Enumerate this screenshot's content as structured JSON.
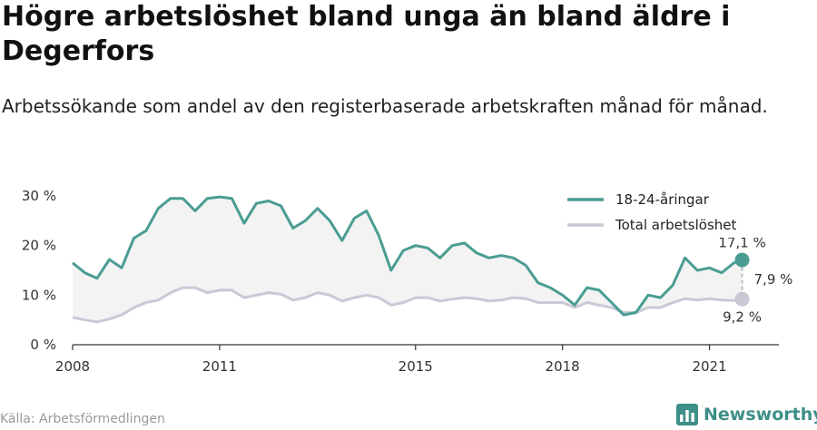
{
  "header": {
    "title": "Högre arbetslöshet bland unga än bland äldre i Degerfors",
    "subtitle": "Arbetssökande som andel av den registerbaserade arbetskraften månad för månad."
  },
  "footer": {
    "source": "Källa: Arbetsförmedlingen",
    "brand": "Newsworthy",
    "brand_icon": "bar-chart-logo-icon"
  },
  "colors": {
    "youth": "#4a9d93",
    "total": "#c9c9d6",
    "band": "#f3f3f3",
    "axis": "#333333"
  },
  "chart_data": {
    "type": "line",
    "ylim": [
      0,
      30
    ],
    "xlim": [
      "2008-01",
      "2022-06"
    ],
    "yticks": [
      {
        "value": 0,
        "label": "0 %"
      },
      {
        "value": 10,
        "label": "10 %"
      },
      {
        "value": 20,
        "label": "20 %"
      },
      {
        "value": 30,
        "label": "30 %"
      }
    ],
    "xticks": [
      {
        "value": "2008-01",
        "label": "2008"
      },
      {
        "value": "2011-01",
        "label": "2011"
      },
      {
        "value": "2015-01",
        "label": "2015"
      },
      {
        "value": "2018-01",
        "label": "2018"
      },
      {
        "value": "2021-01",
        "label": "2021"
      }
    ],
    "legend": {
      "placement": "top-right"
    },
    "series": [
      {
        "name": "18-24-åringar",
        "color": "#4a9d93",
        "points": [
          [
            "2008-01",
            16.5
          ],
          [
            "2008-04",
            14.5
          ],
          [
            "2008-07",
            13.4
          ],
          [
            "2008-10",
            17.2
          ],
          [
            "2009-01",
            15.5
          ],
          [
            "2009-04",
            21.5
          ],
          [
            "2009-07",
            23.0
          ],
          [
            "2009-10",
            27.5
          ],
          [
            "2010-01",
            29.5
          ],
          [
            "2010-04",
            29.5
          ],
          [
            "2010-07",
            27.0
          ],
          [
            "2010-10",
            29.5
          ],
          [
            "2011-01",
            29.8
          ],
          [
            "2011-04",
            29.5
          ],
          [
            "2011-07",
            24.5
          ],
          [
            "2011-10",
            28.5
          ],
          [
            "2012-01",
            29.0
          ],
          [
            "2012-04",
            28.0
          ],
          [
            "2012-07",
            23.5
          ],
          [
            "2012-10",
            25.0
          ],
          [
            "2013-01",
            27.5
          ],
          [
            "2013-04",
            25.0
          ],
          [
            "2013-07",
            21.0
          ],
          [
            "2013-10",
            25.5
          ],
          [
            "2014-01",
            27.0
          ],
          [
            "2014-04",
            22.0
          ],
          [
            "2014-07",
            15.0
          ],
          [
            "2014-10",
            19.0
          ],
          [
            "2015-01",
            20.0
          ],
          [
            "2015-04",
            19.5
          ],
          [
            "2015-07",
            17.5
          ],
          [
            "2015-10",
            20.0
          ],
          [
            "2016-01",
            20.5
          ],
          [
            "2016-04",
            18.5
          ],
          [
            "2016-07",
            17.5
          ],
          [
            "2016-10",
            18.0
          ],
          [
            "2017-01",
            17.5
          ],
          [
            "2017-04",
            16.0
          ],
          [
            "2017-07",
            12.5
          ],
          [
            "2017-10",
            11.5
          ],
          [
            "2018-01",
            10.0
          ],
          [
            "2018-04",
            8.0
          ],
          [
            "2018-07",
            11.5
          ],
          [
            "2018-10",
            11.0
          ],
          [
            "2019-01",
            8.5
          ],
          [
            "2019-04",
            6.0
          ],
          [
            "2019-07",
            6.5
          ],
          [
            "2019-10",
            10.0
          ],
          [
            "2020-01",
            9.5
          ],
          [
            "2020-04",
            12.0
          ],
          [
            "2020-07",
            17.5
          ],
          [
            "2020-10",
            15.0
          ],
          [
            "2021-01",
            15.5
          ],
          [
            "2021-04",
            14.5
          ],
          [
            "2021-07",
            16.5
          ],
          [
            "2021-09",
            17.1
          ]
        ],
        "end_label": "17,1 %"
      },
      {
        "name": "Total arbetslöshet",
        "color": "#c9c9d6",
        "points": [
          [
            "2008-01",
            5.5
          ],
          [
            "2008-04",
            5.0
          ],
          [
            "2008-07",
            4.6
          ],
          [
            "2008-10",
            5.2
          ],
          [
            "2009-01",
            6.0
          ],
          [
            "2009-04",
            7.5
          ],
          [
            "2009-07",
            8.5
          ],
          [
            "2009-10",
            9.0
          ],
          [
            "2010-01",
            10.5
          ],
          [
            "2010-04",
            11.5
          ],
          [
            "2010-07",
            11.5
          ],
          [
            "2010-10",
            10.5
          ],
          [
            "2011-01",
            11.0
          ],
          [
            "2011-04",
            11.0
          ],
          [
            "2011-07",
            9.5
          ],
          [
            "2011-10",
            10.0
          ],
          [
            "2012-01",
            10.5
          ],
          [
            "2012-04",
            10.2
          ],
          [
            "2012-07",
            9.0
          ],
          [
            "2012-10",
            9.5
          ],
          [
            "2013-01",
            10.5
          ],
          [
            "2013-04",
            10.0
          ],
          [
            "2013-07",
            8.8
          ],
          [
            "2013-10",
            9.5
          ],
          [
            "2014-01",
            10.0
          ],
          [
            "2014-04",
            9.5
          ],
          [
            "2014-07",
            8.0
          ],
          [
            "2014-10",
            8.5
          ],
          [
            "2015-01",
            9.5
          ],
          [
            "2015-04",
            9.5
          ],
          [
            "2015-07",
            8.8
          ],
          [
            "2015-10",
            9.2
          ],
          [
            "2016-01",
            9.5
          ],
          [
            "2016-04",
            9.3
          ],
          [
            "2016-07",
            8.8
          ],
          [
            "2016-10",
            9.0
          ],
          [
            "2017-01",
            9.5
          ],
          [
            "2017-04",
            9.3
          ],
          [
            "2017-07",
            8.5
          ],
          [
            "2017-10",
            8.5
          ],
          [
            "2018-01",
            8.5
          ],
          [
            "2018-04",
            7.5
          ],
          [
            "2018-07",
            8.5
          ],
          [
            "2018-10",
            8.0
          ],
          [
            "2019-01",
            7.5
          ],
          [
            "2019-04",
            6.5
          ],
          [
            "2019-07",
            6.5
          ],
          [
            "2019-10",
            7.5
          ],
          [
            "2020-01",
            7.5
          ],
          [
            "2020-04",
            8.5
          ],
          [
            "2020-07",
            9.3
          ],
          [
            "2020-10",
            9.0
          ],
          [
            "2021-01",
            9.3
          ],
          [
            "2021-04",
            9.0
          ],
          [
            "2021-07",
            8.9
          ],
          [
            "2021-09",
            9.2
          ]
        ],
        "end_label": "9,2 %"
      }
    ],
    "gap_label": "7,9 %"
  }
}
